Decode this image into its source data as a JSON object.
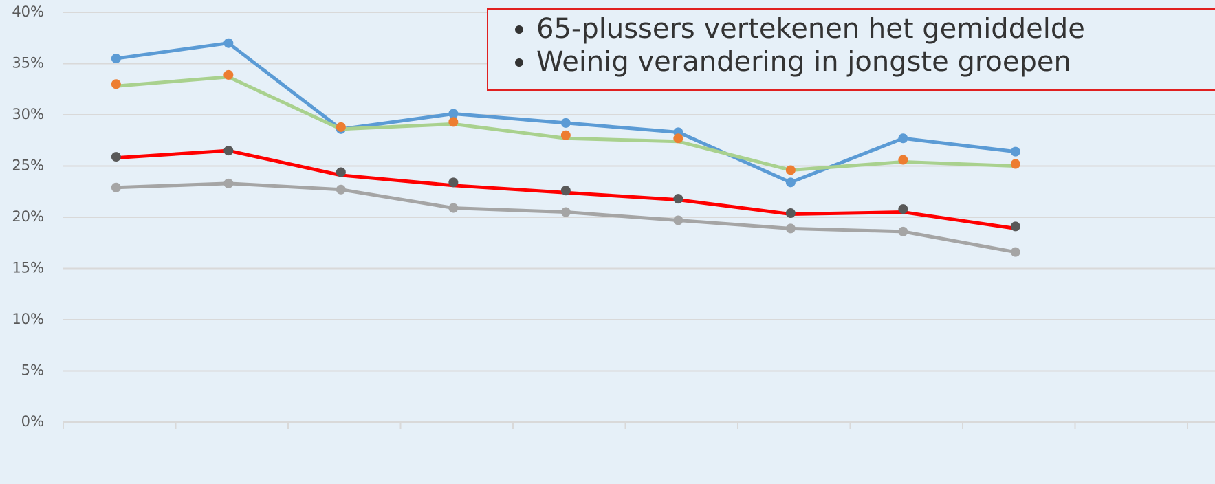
{
  "chart_data": {
    "type": "line",
    "categories": [
      null,
      null,
      null,
      null,
      null,
      null,
      null,
      null,
      null
    ],
    "series": [
      {
        "line_color": "#5b9bd5",
        "marker_color": "#5b9bd5",
        "values": [
          35.5,
          37.0,
          28.6,
          30.1,
          29.2,
          28.3,
          23.4,
          27.7,
          26.4
        ]
      },
      {
        "line_color": "#a9d18e",
        "values": [
          32.8,
          33.7,
          28.6,
          29.1,
          27.7,
          27.4,
          24.6,
          25.4,
          25.0
        ]
      },
      {
        "marker_color": "#ed7d31",
        "values": [
          33.0,
          33.9,
          28.8,
          29.3,
          28.0,
          27.7,
          24.6,
          25.6,
          25.2
        ]
      },
      {
        "line_color": "#ff0000",
        "values": [
          25.8,
          26.5,
          24.1,
          23.1,
          22.4,
          21.7,
          20.3,
          20.5,
          18.9
        ]
      },
      {
        "marker_color": "#595959",
        "values": [
          25.9,
          26.5,
          24.4,
          23.4,
          22.6,
          21.8,
          20.4,
          20.8,
          19.1
        ]
      },
      {
        "line_color": "#a5a5a5",
        "marker_color": "#a5a5a5",
        "values": [
          22.9,
          23.3,
          22.7,
          20.9,
          20.5,
          19.7,
          18.9,
          18.6,
          16.6
        ]
      }
    ],
    "ylim": [
      0,
      40
    ],
    "yticks": [
      {
        "value": 0,
        "label": "0%"
      },
      {
        "value": 5,
        "label": "5%"
      },
      {
        "value": 10,
        "label": "10%"
      },
      {
        "value": 15,
        "label": "15%"
      },
      {
        "value": 20,
        "label": "20%"
      },
      {
        "value": 25,
        "label": "25%"
      },
      {
        "value": 30,
        "label": "30%"
      },
      {
        "value": 35,
        "label": "35%"
      },
      {
        "value": 40,
        "label": "40%"
      }
    ],
    "grid": true,
    "annotations": [
      "65-plussers vertekenen het gemiddelde",
      "Weinig verandering in jongste groepen"
    ]
  }
}
